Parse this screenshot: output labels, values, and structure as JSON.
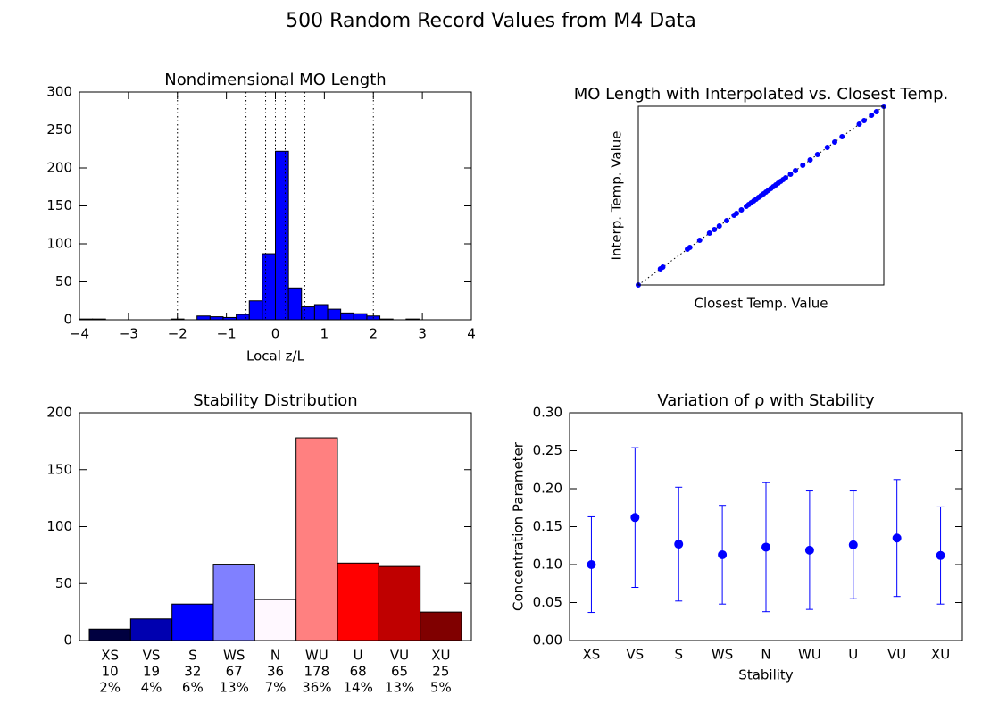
{
  "title": "500 Random Record Values from M4 Data",
  "chart_data": [
    {
      "type": "histogram",
      "title": "Nondimensional MO Length",
      "xlabel": "Local z/L",
      "bins": [
        -4,
        -3.733,
        -3.467,
        -3.2,
        -2.933,
        -2.667,
        -2.4,
        -2.133,
        -1.867,
        -1.6,
        -1.333,
        -1.067,
        -0.8,
        -0.533,
        -0.267,
        0,
        0.267,
        0.533,
        0.8,
        1.067,
        1.333,
        1.6,
        1.867,
        2.133,
        2.4,
        2.667,
        2.933,
        3.2,
        3.467,
        3.733,
        4
      ],
      "values": [
        1,
        1,
        0,
        0,
        0,
        0,
        0,
        1,
        0,
        5,
        4,
        3,
        7,
        25,
        87,
        222,
        42,
        17,
        20,
        14,
        9,
        8,
        5,
        1,
        0,
        1,
        0,
        0,
        0,
        0
      ],
      "color": "#0000ff",
      "vlines": [
        -2,
        -0.6,
        -0.2,
        0,
        0.2,
        0.6,
        2
      ],
      "xlim": [
        -4,
        4
      ],
      "xticks": [
        {
          "value": -4,
          "label": "−4"
        },
        {
          "value": -3,
          "label": "−3"
        },
        {
          "value": -2,
          "label": "−2"
        },
        {
          "value": -1,
          "label": "−1"
        },
        0,
        1,
        2,
        3,
        4
      ],
      "ylim": [
        0,
        300
      ],
      "yticks": [
        0,
        50,
        100,
        150,
        200,
        250,
        300
      ]
    },
    {
      "type": "scatter",
      "title": "MO Length with Interpolated vs. Closest Temp.",
      "xlabel": "Closest Temp. Value",
      "ylabel": "Interp. Temp. Value",
      "x": [
        0,
        0.09,
        0.1,
        0.2,
        0.21,
        0.25,
        0.29,
        0.31,
        0.33,
        0.36,
        0.39,
        0.4,
        0.42,
        0.44,
        0.45,
        0.46,
        0.47,
        0.48,
        0.49,
        0.5,
        0.51,
        0.52,
        0.53,
        0.54,
        0.55,
        0.56,
        0.57,
        0.58,
        0.59,
        0.6,
        0.62,
        0.64,
        0.67,
        0.7,
        0.73,
        0.77,
        0.8,
        0.83,
        0.9,
        0.92,
        0.95,
        0.97,
        1
      ],
      "y": [
        0,
        0.09,
        0.1,
        0.2,
        0.21,
        0.25,
        0.29,
        0.31,
        0.33,
        0.36,
        0.39,
        0.4,
        0.42,
        0.44,
        0.45,
        0.46,
        0.47,
        0.48,
        0.49,
        0.5,
        0.51,
        0.52,
        0.53,
        0.54,
        0.55,
        0.56,
        0.57,
        0.58,
        0.59,
        0.6,
        0.62,
        0.64,
        0.67,
        0.7,
        0.73,
        0.77,
        0.8,
        0.83,
        0.9,
        0.92,
        0.95,
        0.97,
        1
      ],
      "color": "#0000ff",
      "xlim": [
        0,
        1
      ],
      "ylim": [
        0,
        1
      ]
    },
    {
      "type": "bar",
      "title": "Stability Distribution",
      "categories": [
        "XS",
        "VS",
        "S",
        "WS",
        "N",
        "WU",
        "U",
        "VU",
        "XU"
      ],
      "values": [
        10,
        19,
        32,
        67,
        36,
        178,
        68,
        65,
        25
      ],
      "percentage_labels": [
        "2%",
        "4%",
        "6%",
        "13%",
        "7%",
        "36%",
        "14%",
        "13%",
        "5%"
      ],
      "colors": [
        "#000040",
        "#0000b0",
        "#0000ff",
        "#8080ff",
        "#fff8ff",
        "#ff8080",
        "#ff0000",
        "#bf0000",
        "#800000"
      ],
      "ylim": [
        0,
        200
      ],
      "yticks": [
        0,
        50,
        100,
        150,
        200
      ]
    },
    {
      "type": "errorbar",
      "title": "Variation of ρ with Stability",
      "xlabel": "Stability",
      "ylabel": "Concentration Parameter",
      "categories": [
        "XS",
        "VS",
        "S",
        "WS",
        "N",
        "WU",
        "U",
        "VU",
        "XU"
      ],
      "values": [
        0.1,
        0.162,
        0.127,
        0.113,
        0.123,
        0.119,
        0.126,
        0.135,
        0.112
      ],
      "errors": [
        0.063,
        0.092,
        0.075,
        0.065,
        0.085,
        0.078,
        0.071,
        0.077,
        0.064
      ],
      "color": "#0000ff",
      "ylim": [
        0,
        0.3
      ],
      "yticks": [
        {
          "value": 0,
          "label": "0.00"
        },
        {
          "value": 0.05,
          "label": "0.05"
        },
        {
          "value": 0.1,
          "label": "0.10"
        },
        {
          "value": 0.15,
          "label": "0.15"
        },
        {
          "value": 0.2,
          "label": "0.20"
        },
        {
          "value": 0.25,
          "label": "0.25"
        },
        {
          "value": 0.3,
          "label": "0.30"
        }
      ]
    }
  ]
}
